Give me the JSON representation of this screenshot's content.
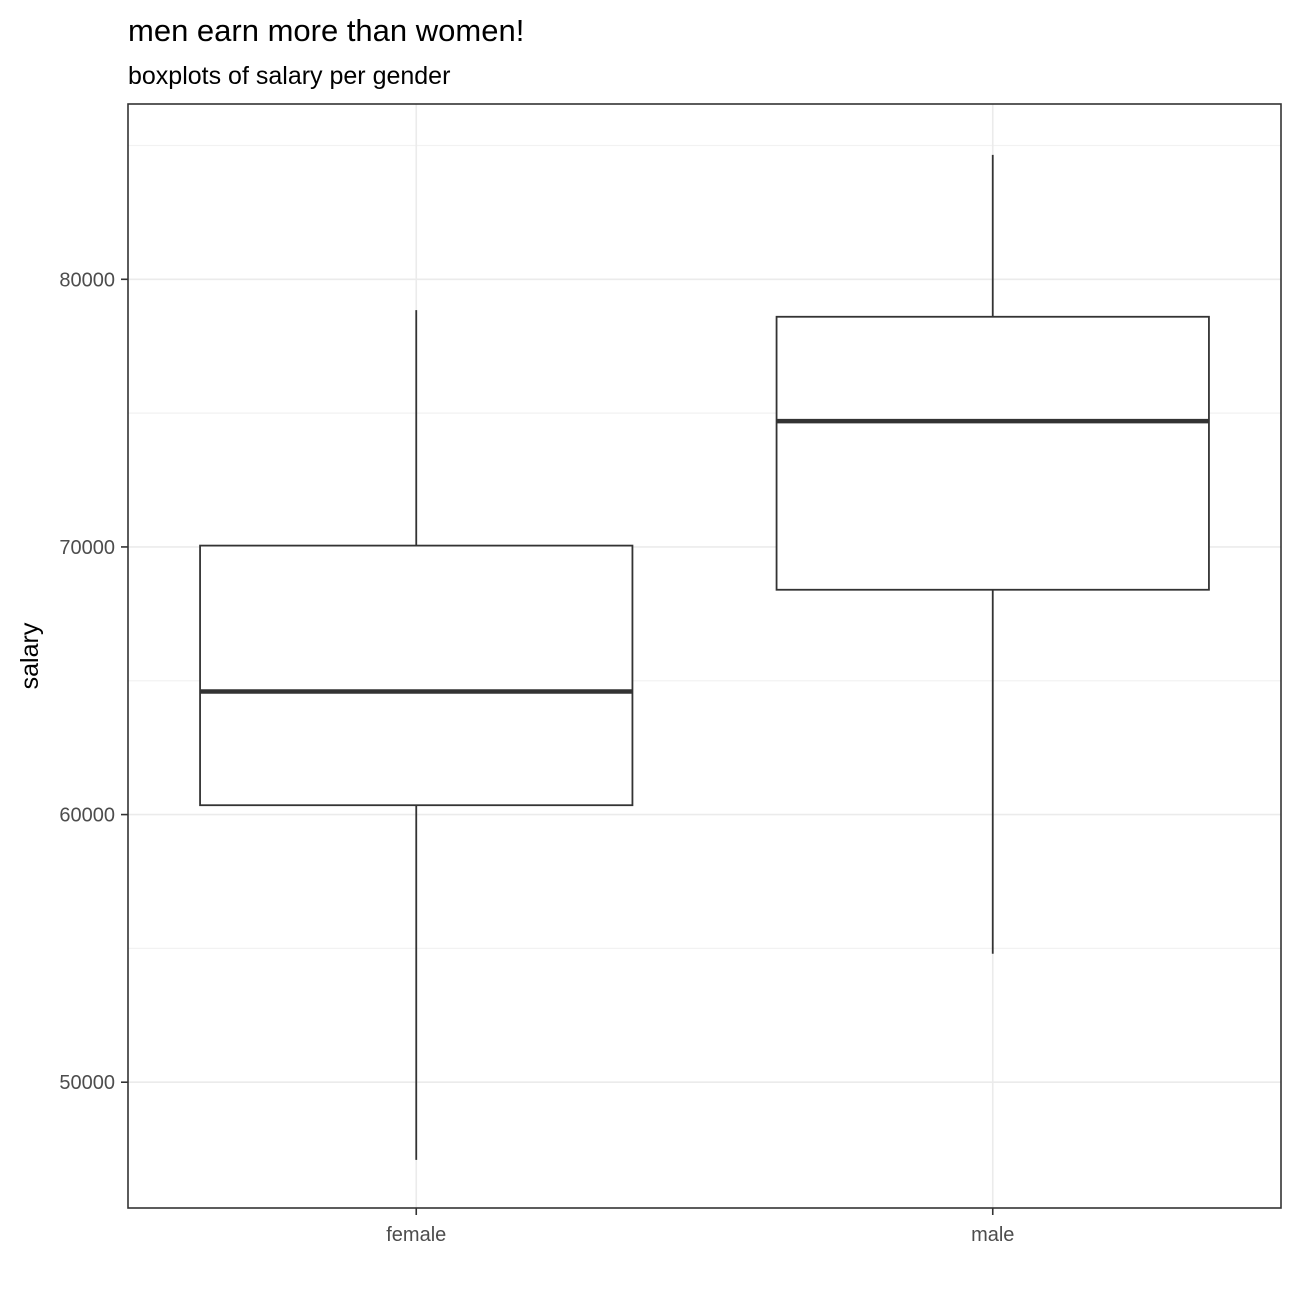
{
  "chart_data": {
    "type": "boxplot",
    "title": "men earn more than women!",
    "subtitle": "boxplots of salary per gender",
    "xlabel": "",
    "ylabel": "salary",
    "categories": [
      "female",
      "male"
    ],
    "boxes": [
      {
        "category": "female",
        "min": 47100,
        "q1": 60350,
        "median": 64600,
        "q3": 70050,
        "max": 78850
      },
      {
        "category": "male",
        "min": 54800,
        "q1": 68400,
        "median": 74700,
        "q3": 78600,
        "max": 84650
      }
    ],
    "y_ticks": [
      50000,
      60000,
      70000,
      80000
    ],
    "y_tick_labels": [
      "50000",
      "60000",
      "70000",
      "80000"
    ],
    "ylim": [
      45300,
      86550
    ],
    "grid": true,
    "legend": "none",
    "theme": "bw"
  },
  "colors": {
    "box_line": "#333333",
    "box_fill": "#ffffff",
    "grid_major": "#ebebeb",
    "grid_minor": "#f2f2f2",
    "panel_border": "#333333",
    "tick_text": "#4d4d4d"
  }
}
